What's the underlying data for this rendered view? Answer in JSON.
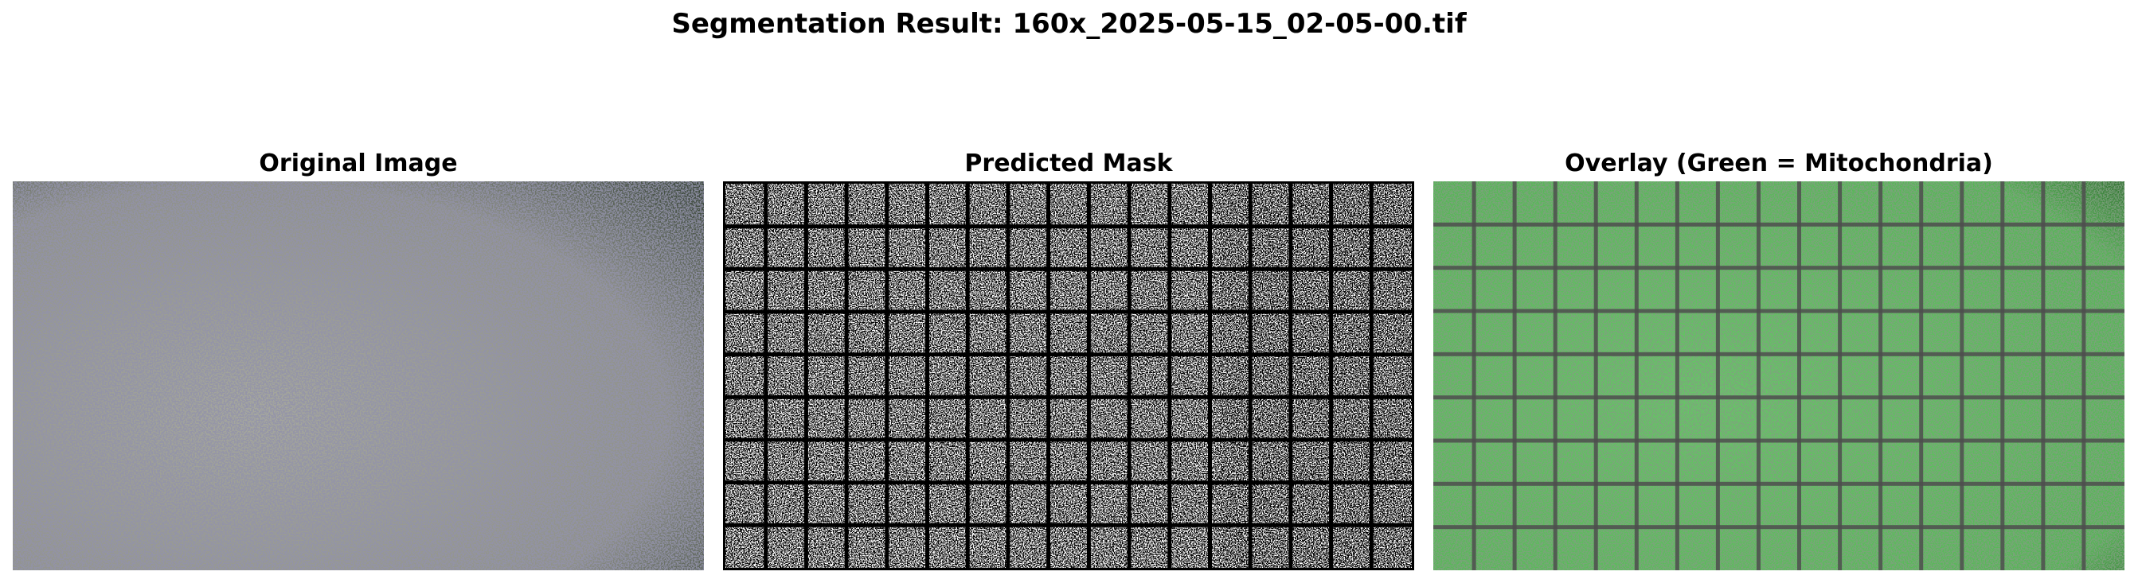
{
  "figure": {
    "title": "Segmentation Result: 160x_2025-05-15_02-05-00.tif"
  },
  "panels": [
    {
      "title": "Original Image"
    },
    {
      "title": "Predicted Mask"
    },
    {
      "title": "Overlay (Green = Mitochondria)"
    }
  ],
  "colors": {
    "original_base": "#8e9088",
    "original_speckle": "#4a4a66",
    "mask_foreground": "#ffffff",
    "mask_background": "#000000",
    "overlay_green": "#5cbf5c",
    "overlay_grid": "#4e4e4e"
  },
  "grid": {
    "columns": 17,
    "rows": 9
  }
}
